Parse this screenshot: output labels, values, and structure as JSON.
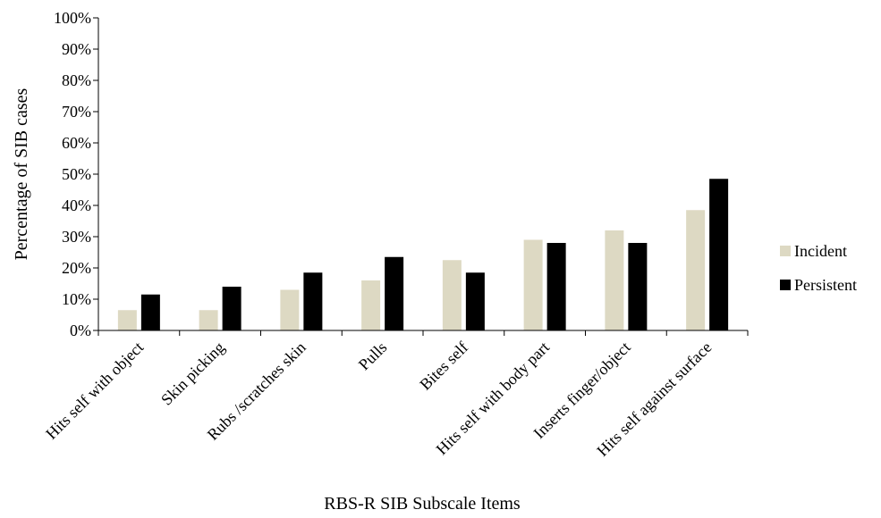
{
  "chart_data": {
    "type": "bar",
    "title": "",
    "xlabel": "RBS-R SIB Subscale Items",
    "ylabel": "Percentage of SIB cases",
    "categories": [
      "Hits self with object",
      "Skin picking",
      "Rubs /scratches skin",
      "Pulls",
      "Bites self",
      "Hits self with body part",
      "Inserts finger/object",
      "Hits self against surface"
    ],
    "series": [
      {
        "name": "Incident",
        "color": "#ddd9c3",
        "values": [
          6.5,
          6.5,
          13,
          16,
          22.5,
          29,
          32,
          38.5
        ]
      },
      {
        "name": "Persistent",
        "color": "#000000",
        "values": [
          11.5,
          14,
          18.5,
          23.5,
          18.5,
          28,
          28,
          48.5
        ]
      }
    ],
    "ylim": [
      0,
      100
    ],
    "yticks": [
      0,
      10,
      20,
      30,
      40,
      50,
      60,
      70,
      80,
      90,
      100
    ],
    "ytick_labels": [
      "0%",
      "10%",
      "20%",
      "30%",
      "40%",
      "50%",
      "60%",
      "70%",
      "80%",
      "90%",
      "100%"
    ],
    "grid": false,
    "legend_position": "right"
  }
}
